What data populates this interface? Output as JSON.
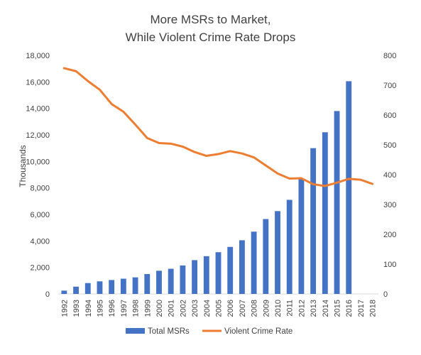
{
  "chart_data": {
    "type": "bar+line",
    "title_lines": [
      "More MSRs to Market,",
      "While Violent Crime Rate Drops"
    ],
    "xlabel": "",
    "ylabel": "Thousands",
    "y2label": "",
    "categories": [
      "1992",
      "1993",
      "1994",
      "1995",
      "1996",
      "1997",
      "1998",
      "1999",
      "2000",
      "2001",
      "2002",
      "2003",
      "2004",
      "2005",
      "2006",
      "2007",
      "2008",
      "2009",
      "2010",
      "2011",
      "2012",
      "2013",
      "2014",
      "2015",
      "2016",
      "2017",
      "2018"
    ],
    "ylim": [
      0,
      18000
    ],
    "yticks": [
      "0",
      "2,000",
      "4,000",
      "6,000",
      "8,000",
      "10,000",
      "12,000",
      "14,000",
      "16,000",
      "18,000"
    ],
    "y2lim": [
      0,
      800
    ],
    "y2ticks": [
      "0",
      "100",
      "200",
      "300",
      "400",
      "500",
      "600",
      "700",
      "800"
    ],
    "grid": false,
    "legend_position": "bottom",
    "series": [
      {
        "name": "Total MSRs",
        "type": "bar",
        "axis": "left",
        "color": "#4472C4",
        "values": [
          250,
          550,
          820,
          950,
          1050,
          1150,
          1250,
          1500,
          1750,
          1900,
          2150,
          2550,
          2850,
          3150,
          3550,
          4050,
          4700,
          5650,
          6250,
          7100,
          8650,
          11000,
          12200,
          13800,
          16050,
          null,
          null
        ]
      },
      {
        "name": "Violent Crime Rate",
        "type": "line",
        "axis": "right",
        "color": "#ED7D31",
        "values": [
          757,
          747,
          714,
          685,
          637,
          611,
          568,
          523,
          506,
          504,
          494,
          476,
          463,
          469,
          479,
          471,
          458,
          431,
          404,
          387,
          388,
          368,
          362,
          373,
          386,
          383,
          369
        ]
      }
    ]
  }
}
